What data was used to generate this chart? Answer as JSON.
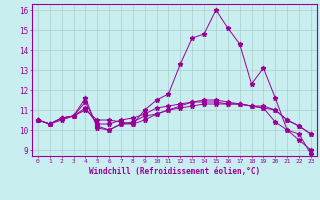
{
  "xlabel": "Windchill (Refroidissement éolien,°C)",
  "background_color": "#c8eef0",
  "line_color": "#990099",
  "grid_color": "#aacccc",
  "xlim": [
    -0.5,
    23.5
  ],
  "ylim": [
    8.7,
    16.3
  ],
  "xticks": [
    0,
    1,
    2,
    3,
    4,
    5,
    6,
    7,
    8,
    9,
    10,
    11,
    12,
    13,
    14,
    15,
    16,
    17,
    18,
    19,
    20,
    21,
    22,
    23
  ],
  "yticks": [
    9,
    10,
    11,
    12,
    13,
    14,
    15,
    16
  ],
  "series": [
    [
      10.5,
      10.3,
      10.6,
      10.7,
      11.6,
      10.1,
      10.0,
      10.3,
      10.3,
      11.0,
      11.5,
      11.8,
      13.3,
      14.6,
      14.8,
      16.0,
      15.1,
      14.3,
      12.3,
      13.1,
      11.6,
      10.0,
      9.8,
      8.8
    ],
    [
      10.5,
      10.3,
      10.5,
      10.7,
      11.0,
      10.5,
      10.5,
      10.4,
      10.3,
      10.5,
      10.8,
      11.0,
      11.2,
      11.4,
      11.5,
      11.5,
      11.4,
      11.3,
      11.2,
      11.2,
      11.0,
      10.5,
      10.2,
      9.8
    ],
    [
      10.5,
      10.3,
      10.6,
      10.7,
      11.1,
      10.3,
      10.3,
      10.5,
      10.6,
      10.8,
      11.1,
      11.2,
      11.3,
      11.4,
      11.4,
      11.4,
      11.3,
      11.3,
      11.2,
      11.1,
      11.0,
      10.5,
      10.2,
      9.8
    ],
    [
      10.5,
      10.3,
      10.6,
      10.7,
      11.4,
      10.2,
      10.0,
      10.3,
      10.4,
      10.7,
      10.8,
      11.0,
      11.1,
      11.2,
      11.3,
      11.3,
      11.3,
      11.3,
      11.2,
      11.1,
      10.4,
      10.0,
      9.5,
      9.0
    ]
  ]
}
